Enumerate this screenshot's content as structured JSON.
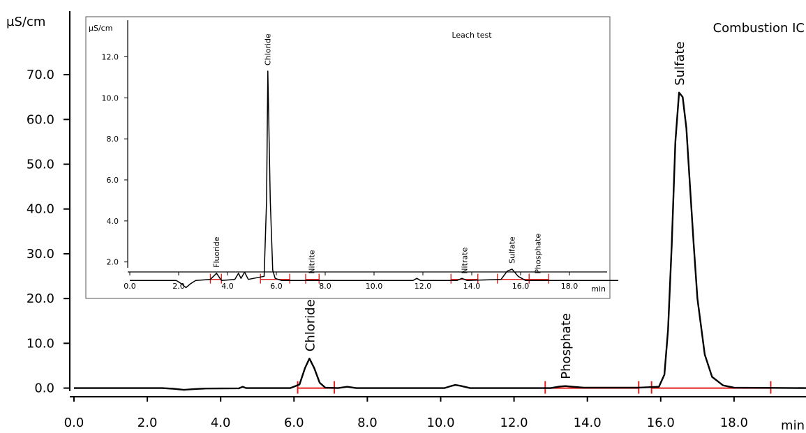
{
  "chart_data": [
    {
      "type": "line",
      "title": "Combustion IC",
      "ylabel": "µS/cm",
      "xlabel": "min",
      "xlim": [
        0,
        20
      ],
      "ylim": [
        -1,
        75
      ],
      "x_ticks": [
        "0.0",
        "2.0",
        "4.0",
        "6.0",
        "8.0",
        "10.0",
        "12.0",
        "14.0",
        "16.0",
        "18.0"
      ],
      "y_ticks": [
        "0.0",
        "10.0",
        "20.0",
        "30.0",
        "40.0",
        "50.0",
        "60.0",
        "70.0"
      ],
      "series": [
        {
          "x": [
            0,
            2.4,
            2.7,
            3.0,
            3.3,
            3.6,
            4.5,
            4.6,
            4.7,
            5.9,
            6.15,
            6.3,
            6.42,
            6.55,
            6.7,
            6.85,
            7.2,
            7.45,
            7.7,
            10.1,
            10.3,
            10.4,
            10.55,
            10.8,
            13.0,
            13.25,
            13.4,
            13.6,
            13.9,
            15.4,
            15.95,
            16.1,
            16.2,
            16.3,
            16.4,
            16.5,
            16.6,
            16.7,
            16.8,
            16.9,
            17.0,
            17.2,
            17.4,
            17.7,
            18.0,
            20.0
          ],
          "y": [
            0.0,
            0.0,
            -0.15,
            -0.4,
            -0.2,
            -0.1,
            -0.05,
            0.3,
            0.0,
            0.0,
            0.8,
            4.5,
            6.6,
            4.5,
            1.2,
            0.1,
            0.0,
            0.3,
            0.0,
            0.0,
            0.5,
            0.7,
            0.5,
            0.0,
            0.0,
            0.35,
            0.45,
            0.3,
            0.1,
            0.1,
            0.3,
            3.0,
            13.0,
            32.0,
            55.0,
            66.0,
            65.0,
            58.0,
            45.0,
            32.0,
            20.0,
            7.5,
            2.5,
            0.6,
            0.1,
            0.0
          ]
        }
      ],
      "peaks": [
        {
          "label": "Chloride",
          "x": 6.42,
          "y": 6.6
        },
        {
          "label": "Phosphate",
          "x": 13.4,
          "y": 0.45
        },
        {
          "label": "Sulfate",
          "x": 16.5,
          "y": 66.0
        }
      ],
      "integration_ranges": [
        [
          6.1,
          7.1
        ],
        [
          12.85,
          15.4
        ],
        [
          15.75,
          19.0
        ]
      ],
      "grid": false,
      "legend": "none"
    },
    {
      "type": "line",
      "title": "Leach test",
      "ylabel": "µS/cm",
      "xlabel": "min",
      "xlim": [
        0,
        20
      ],
      "ylim": [
        0.8,
        13.0
      ],
      "x_ticks": [
        "0.0",
        "2.0",
        "4.0",
        "6.0",
        "8.0",
        "10.0",
        "12.0",
        "14.0",
        "16.0",
        "18.0"
      ],
      "y_ticks": [
        "2.0",
        "4.0",
        "6.0",
        "8.0",
        "10.0",
        "12.0"
      ],
      "series": [
        {
          "x": [
            0,
            1.9,
            2.1,
            2.3,
            2.5,
            2.7,
            3.3,
            3.55,
            3.75,
            4.3,
            4.45,
            4.55,
            4.7,
            4.85,
            5.5,
            5.6,
            5.65,
            5.75,
            5.85,
            5.95,
            6.2,
            9.0,
            11.6,
            11.75,
            11.9,
            13.4,
            13.6,
            13.8,
            15.2,
            15.45,
            15.65,
            15.9,
            16.2,
            20.0
          ],
          "y": [
            1.1,
            1.1,
            0.95,
            0.75,
            0.95,
            1.1,
            1.15,
            1.45,
            1.1,
            1.15,
            1.45,
            1.2,
            1.5,
            1.15,
            1.3,
            5.0,
            11.3,
            5.0,
            1.6,
            1.2,
            1.1,
            1.1,
            1.1,
            1.2,
            1.1,
            1.1,
            1.2,
            1.1,
            1.15,
            1.55,
            1.65,
            1.3,
            1.1,
            1.1
          ]
        }
      ],
      "peaks": [
        {
          "label": "Fluoride",
          "x": 3.55,
          "y": 1.45
        },
        {
          "label": "Chloride",
          "x": 5.65,
          "y": 11.3
        },
        {
          "label": "Nitrite",
          "x": 7.45,
          "y": 1.15
        },
        {
          "label": "Nitrate",
          "x": 13.7,
          "y": 1.15
        },
        {
          "label": "Sulfate",
          "x": 15.65,
          "y": 1.65
        },
        {
          "label": "Phosphate",
          "x": 16.7,
          "y": 1.15
        }
      ],
      "integration_ranges": [
        [
          3.3,
          3.75
        ],
        [
          5.35,
          6.55
        ],
        [
          7.2,
          7.75
        ],
        [
          13.15,
          14.25
        ],
        [
          15.05,
          16.35
        ],
        [
          16.35,
          17.15
        ]
      ],
      "grid": false,
      "legend": "none"
    }
  ]
}
